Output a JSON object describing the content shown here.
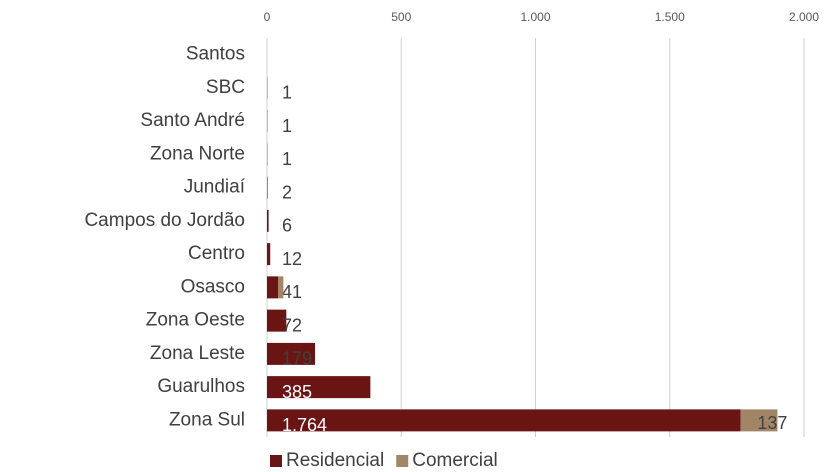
{
  "chart_data": {
    "type": "stacked-bar-horizontal",
    "categories": [
      "Santos",
      "SBC",
      "Santo André",
      "Zona Norte",
      "Jundiaí",
      "Campos do Jordão",
      "Centro",
      "Osasco",
      "Zona Oeste",
      "Zona Leste",
      "Guarulhos",
      "Zona Sul"
    ],
    "series": [
      {
        "name": "Residencial",
        "color": "#6b1414",
        "values": [
          0,
          1,
          1,
          1,
          2,
          6,
          12,
          41,
          72,
          179,
          385,
          1764
        ],
        "value_labels": [
          null,
          "1",
          "1",
          "1",
          "2",
          "6",
          "12",
          "41",
          "72",
          "179",
          "385",
          "1.764"
        ]
      },
      {
        "name": "Comercial",
        "color": "#a28566",
        "values": [
          0,
          0,
          0,
          0,
          0,
          0,
          0,
          20,
          0,
          0,
          0,
          137
        ],
        "value_labels": [
          null,
          null,
          null,
          null,
          null,
          null,
          null,
          null,
          null,
          null,
          null,
          "137"
        ]
      }
    ],
    "xlim": [
      0,
      2000
    ],
    "xticks": [
      0,
      500,
      {
        "value": 1000,
        "label": "1.000"
      },
      {
        "value": 1500,
        "label": "1.500"
      },
      {
        "value": 2000,
        "label": "2.000"
      }
    ],
    "grid": true,
    "legend": "bottom"
  }
}
